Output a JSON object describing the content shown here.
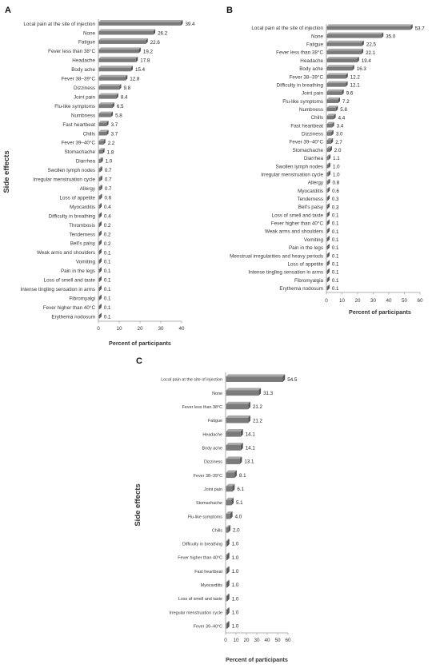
{
  "figure": {
    "colors": {
      "bar_front": "#7b7b7b",
      "bar_top": "#a9a9a9",
      "bar_side": "#555555",
      "axis": "#999999"
    }
  },
  "chart_data": [
    {
      "panel": "A",
      "type": "bar",
      "orientation": "horizontal",
      "title": "",
      "xlabel": "Percent of participants",
      "ylabel": "Side effects",
      "xlim": [
        0,
        40
      ],
      "xticks": [
        "0",
        "10",
        "20",
        "30",
        "40"
      ],
      "grid": false,
      "categories": [
        "Local pain at the site of injection",
        "None",
        "Fatigue",
        "Fever less than 38°C",
        "Headache",
        "Body ache",
        "Fever 38–39°C",
        "Dizziness",
        "Joint pain",
        "Flu-like symptoms",
        "Numbness",
        "Fast heartbeat",
        "Chills",
        "Fever 39–40°C",
        "Stomachache",
        "Diarrhea",
        "Swollen lymph nodes",
        "Irregular menstruation cycle",
        "Allergy",
        "Loss of appetite",
        "Myocarditis",
        "Difficulty in breathing",
        "Thrombosis",
        "Tenderness",
        "Bell's palsy",
        "Weak arms and shoulders",
        "Vomiting",
        "Pain in the legs",
        "Loss of smell and taste",
        "Intense tingling sensation in arms",
        "Fibromyalgi",
        "Fever higher than 40°C",
        "Erythema nodosum"
      ],
      "values": [
        39.4,
        26.2,
        22.6,
        19.2,
        17.8,
        15.4,
        12.8,
        9.8,
        8.4,
        6.5,
        5.8,
        3.7,
        3.7,
        2.2,
        1.8,
        1.0,
        0.7,
        0.7,
        0.7,
        0.6,
        0.4,
        0.4,
        0.2,
        0.2,
        0.2,
        0.1,
        0.1,
        0.1,
        0.1,
        0.1,
        0.1,
        0.1,
        0.1
      ],
      "labels": [
        "39.4",
        "26.2",
        "22.6",
        "19.2",
        "17.8",
        "15.4",
        "12.8",
        "9.8",
        "8.4",
        "6.5",
        "5.8",
        "3.7",
        "3.7",
        "2.2",
        "1.8",
        "1.0",
        "0.7",
        "0.7",
        "0.7",
        "0.6",
        "0.4",
        "0.4",
        "0.2",
        "0.2",
        "0.2",
        "0.1",
        "0.1",
        "0.1",
        "0.1",
        "0.1",
        "0.1",
        "0.1",
        "0.1"
      ]
    },
    {
      "panel": "B",
      "type": "bar",
      "orientation": "horizontal",
      "title": "",
      "xlabel": "Percent of participants",
      "ylabel": "Side effects",
      "xlim": [
        0,
        60
      ],
      "xticks": [
        "0",
        "10",
        "20",
        "30",
        "40",
        "50",
        "60"
      ],
      "grid": false,
      "categories": [
        "Local pain at the site of injection",
        "None",
        "Fatigue",
        "Fever less than 38°C",
        "Headache",
        "Body ache",
        "Fever 38–39°C",
        "Difficulty in breathing",
        "Joint pain",
        "Flu-like symptoms",
        "Numbness",
        "Chills",
        "Fast heartbeat",
        "Dizziness",
        "Fever 39–40°C",
        "Stomachache",
        "Diarrhea",
        "Swollen lymph nodes",
        "Irregular menstruation cycle",
        "Allergy",
        "Myocarditis",
        "Tenderness",
        "Bell's palsy",
        "Loss of smell and taste",
        "Fever higher than 40°C",
        "Weak arms and shoulders",
        "Vomiting",
        "Pain in the legs",
        "Menstrual irregularities and heavy periods",
        "Loss of appetite",
        "Intense tingling sensation in arms",
        "Fibromyalgia",
        "Erythema nodosum"
      ],
      "values": [
        53.7,
        35.0,
        22.5,
        22.1,
        19.4,
        16.3,
        12.2,
        12.1,
        9.6,
        7.2,
        5.8,
        4.4,
        3.4,
        3.0,
        2.7,
        2.0,
        1.1,
        1.0,
        1.0,
        0.8,
        0.6,
        0.3,
        0.3,
        0.1,
        0.1,
        0.1,
        0.1,
        0.1,
        0.1,
        0.1,
        0.1,
        0.1,
        0.1
      ],
      "labels": [
        "53.7",
        "35.0",
        "22.5",
        "22.1",
        "19.4",
        "16.3",
        "12.2",
        "12.1",
        "9.6",
        "7.2",
        "5.8",
        "4.4",
        "3.4",
        "3.0",
        "2.7",
        "2.0",
        "1.1",
        "1.0",
        "1.0",
        "0.8",
        "0.6",
        "0.3",
        "0.3",
        "0.1",
        "0.1",
        "0.1",
        "0.1",
        "0.1",
        "0.1",
        "0.1",
        "0.1",
        "0.1",
        "0.1"
      ]
    },
    {
      "panel": "C",
      "type": "bar",
      "orientation": "horizontal",
      "title": "",
      "xlabel": "Percent of participants",
      "ylabel": "Side effects",
      "xlim": [
        0,
        60
      ],
      "xticks": [
        "0",
        "10",
        "20",
        "30",
        "40",
        "50",
        "60"
      ],
      "grid": false,
      "categories": [
        "Local pain at the site of injection",
        "None",
        "Fever less than 38°C",
        "Fatigue",
        "Headache",
        "Body ache",
        "Dizziness",
        "Fever 38–39°C",
        "Joint pain",
        "Stomachache",
        "Flu-like symptoms",
        "Chills",
        "Difficulty in breathing",
        "Fever higher than 40°C",
        "Fast heartbeat",
        "Myocarditis",
        "Loss of smell and taste",
        "Irregular menstruation cycle",
        "Fever 39–40°C"
      ],
      "values": [
        54.5,
        31.3,
        21.2,
        21.2,
        14.1,
        14.1,
        13.1,
        8.1,
        6.1,
        5.1,
        4.0,
        2.0,
        1.0,
        1.0,
        1.0,
        1.0,
        1.0,
        1.0,
        1.0
      ],
      "labels": [
        "54.5",
        "31.3",
        "21.2",
        "21.2",
        "14.1",
        "14.1",
        "13.1",
        "8.1",
        "6.1",
        "5.1",
        "4.0",
        "2.0",
        "1.0",
        "1.0",
        "1.0",
        "1.0",
        "1.0",
        "1.0",
        "1.0"
      ]
    }
  ]
}
